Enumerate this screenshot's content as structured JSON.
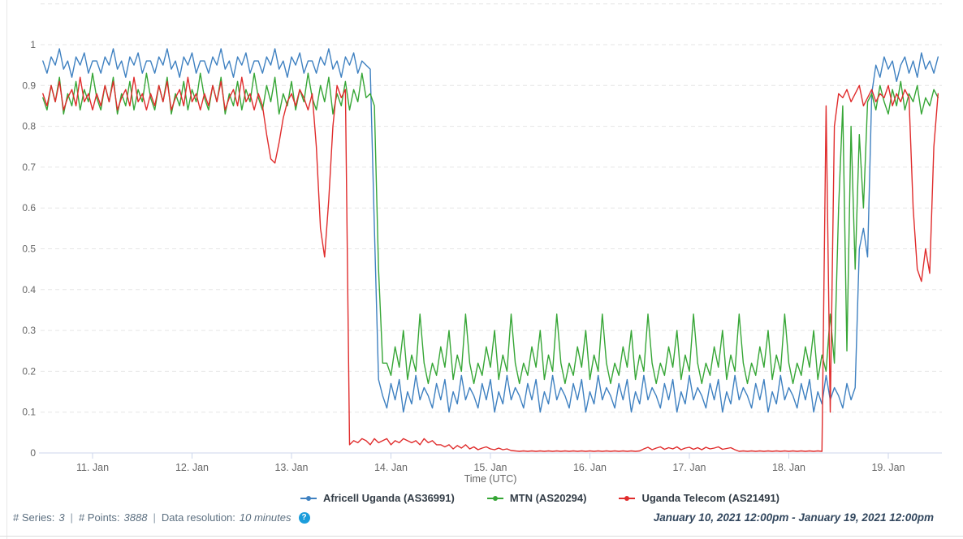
{
  "chart_data": {
    "type": "line",
    "xlabel": "Time (UTC)",
    "x_axis": {
      "start_day": 10.5,
      "end_day": 19.5,
      "tick_days": [
        11,
        12,
        13,
        14,
        15,
        16,
        17,
        18,
        19
      ],
      "tick_labels": [
        "11. Jan",
        "12. Jan",
        "13. Jan",
        "14. Jan",
        "15. Jan",
        "16. Jan",
        "17. Jan",
        "18. Jan",
        "19. Jan"
      ]
    },
    "y_axis": {
      "min": 0,
      "max": 1.1,
      "tick_step": 0.1,
      "labeled_ticks": [
        0,
        0.1,
        0.2,
        0.3,
        0.4,
        0.5,
        0.6,
        0.7,
        0.8,
        0.9,
        1
      ],
      "grid": "dashed"
    },
    "legend_position": "bottom",
    "series": [
      {
        "name": "Africell Uganda (AS36991)",
        "color": "#3f81c1",
        "values": [
          0.96,
          0.93,
          0.97,
          0.95,
          0.99,
          0.94,
          0.96,
          0.92,
          0.97,
          0.95,
          0.98,
          0.93,
          0.96,
          0.96,
          0.93,
          0.97,
          0.95,
          0.99,
          0.94,
          0.96,
          0.92,
          0.97,
          0.95,
          0.98,
          0.93,
          0.96,
          0.96,
          0.93,
          0.97,
          0.95,
          0.99,
          0.94,
          0.96,
          0.92,
          0.97,
          0.95,
          0.98,
          0.93,
          0.96,
          0.96,
          0.93,
          0.97,
          0.95,
          0.99,
          0.94,
          0.96,
          0.92,
          0.97,
          0.95,
          0.98,
          0.93,
          0.96,
          0.96,
          0.93,
          0.97,
          0.95,
          0.99,
          0.94,
          0.96,
          0.92,
          0.97,
          0.95,
          0.98,
          0.93,
          0.96,
          0.96,
          0.93,
          0.97,
          0.95,
          0.99,
          0.94,
          0.96,
          0.92,
          0.97,
          0.95,
          0.98,
          0.93,
          0.96,
          0.95,
          0.94,
          0.55,
          0.18,
          0.14,
          0.11,
          0.17,
          0.13,
          0.18,
          0.1,
          0.15,
          0.12,
          0.19,
          0.13,
          0.16,
          0.14,
          0.11,
          0.17,
          0.13,
          0.18,
          0.1,
          0.15,
          0.12,
          0.19,
          0.13,
          0.16,
          0.14,
          0.11,
          0.17,
          0.13,
          0.18,
          0.1,
          0.15,
          0.12,
          0.19,
          0.13,
          0.16,
          0.14,
          0.11,
          0.17,
          0.13,
          0.18,
          0.1,
          0.15,
          0.12,
          0.19,
          0.13,
          0.16,
          0.14,
          0.11,
          0.17,
          0.13,
          0.18,
          0.1,
          0.15,
          0.12,
          0.19,
          0.13,
          0.16,
          0.14,
          0.11,
          0.17,
          0.13,
          0.18,
          0.1,
          0.15,
          0.12,
          0.19,
          0.13,
          0.16,
          0.14,
          0.11,
          0.17,
          0.13,
          0.18,
          0.1,
          0.15,
          0.12,
          0.19,
          0.13,
          0.16,
          0.14,
          0.11,
          0.17,
          0.13,
          0.18,
          0.1,
          0.15,
          0.12,
          0.19,
          0.13,
          0.16,
          0.14,
          0.11,
          0.17,
          0.13,
          0.18,
          0.1,
          0.15,
          0.12,
          0.19,
          0.13,
          0.16,
          0.14,
          0.11,
          0.17,
          0.13,
          0.18,
          0.1,
          0.15,
          0.12,
          0.19,
          0.13,
          0.16,
          0.14,
          0.11,
          0.17,
          0.13,
          0.16,
          0.5,
          0.55,
          0.48,
          0.88,
          0.95,
          0.92,
          0.97,
          0.94,
          0.96,
          0.91,
          0.95,
          0.97,
          0.93,
          0.96,
          0.92,
          0.98,
          0.94,
          0.96,
          0.93,
          0.97
        ]
      },
      {
        "name": "MTN (AS20294)",
        "color": "#36a636",
        "values": [
          0.87,
          0.84,
          0.9,
          0.86,
          0.92,
          0.83,
          0.88,
          0.85,
          0.91,
          0.84,
          0.89,
          0.86,
          0.93,
          0.87,
          0.84,
          0.9,
          0.86,
          0.92,
          0.83,
          0.88,
          0.85,
          0.91,
          0.84,
          0.89,
          0.86,
          0.93,
          0.87,
          0.84,
          0.9,
          0.86,
          0.92,
          0.83,
          0.88,
          0.85,
          0.91,
          0.84,
          0.89,
          0.86,
          0.93,
          0.87,
          0.84,
          0.9,
          0.86,
          0.92,
          0.83,
          0.88,
          0.85,
          0.91,
          0.84,
          0.89,
          0.86,
          0.93,
          0.87,
          0.84,
          0.9,
          0.86,
          0.92,
          0.83,
          0.88,
          0.85,
          0.91,
          0.84,
          0.89,
          0.86,
          0.93,
          0.87,
          0.84,
          0.9,
          0.86,
          0.92,
          0.83,
          0.88,
          0.85,
          0.91,
          0.84,
          0.89,
          0.86,
          0.93,
          0.87,
          0.88,
          0.85,
          0.45,
          0.22,
          0.22,
          0.19,
          0.26,
          0.21,
          0.3,
          0.18,
          0.24,
          0.2,
          0.34,
          0.22,
          0.17,
          0.22,
          0.19,
          0.26,
          0.21,
          0.3,
          0.18,
          0.24,
          0.2,
          0.34,
          0.22,
          0.17,
          0.22,
          0.19,
          0.26,
          0.21,
          0.3,
          0.18,
          0.24,
          0.2,
          0.34,
          0.22,
          0.17,
          0.22,
          0.19,
          0.26,
          0.21,
          0.3,
          0.18,
          0.24,
          0.2,
          0.34,
          0.22,
          0.17,
          0.22,
          0.19,
          0.26,
          0.21,
          0.3,
          0.18,
          0.24,
          0.2,
          0.34,
          0.22,
          0.17,
          0.22,
          0.19,
          0.26,
          0.21,
          0.3,
          0.18,
          0.24,
          0.2,
          0.34,
          0.22,
          0.17,
          0.22,
          0.19,
          0.26,
          0.21,
          0.3,
          0.18,
          0.24,
          0.2,
          0.34,
          0.22,
          0.17,
          0.22,
          0.19,
          0.26,
          0.21,
          0.3,
          0.18,
          0.24,
          0.2,
          0.34,
          0.22,
          0.17,
          0.22,
          0.19,
          0.26,
          0.21,
          0.3,
          0.18,
          0.24,
          0.2,
          0.34,
          0.22,
          0.17,
          0.22,
          0.19,
          0.26,
          0.21,
          0.3,
          0.18,
          0.24,
          0.2,
          0.34,
          0.22,
          0.6,
          0.85,
          0.25,
          0.8,
          0.45,
          0.78,
          0.6,
          0.86,
          0.88,
          0.84,
          0.9,
          0.86,
          0.83,
          0.89,
          0.85,
          0.91,
          0.84,
          0.88,
          0.86,
          0.9,
          0.83,
          0.87,
          0.85,
          0.89,
          0.87
        ]
      },
      {
        "name": "Uganda Telecom (AS21491)",
        "color": "#e02c2c",
        "values": [
          0.88,
          0.85,
          0.9,
          0.86,
          0.91,
          0.84,
          0.87,
          0.89,
          0.85,
          0.92,
          0.86,
          0.88,
          0.84,
          0.88,
          0.85,
          0.9,
          0.86,
          0.91,
          0.84,
          0.87,
          0.89,
          0.85,
          0.92,
          0.86,
          0.88,
          0.84,
          0.88,
          0.85,
          0.9,
          0.86,
          0.91,
          0.84,
          0.87,
          0.89,
          0.85,
          0.92,
          0.86,
          0.88,
          0.84,
          0.88,
          0.85,
          0.9,
          0.86,
          0.91,
          0.84,
          0.87,
          0.89,
          0.85,
          0.92,
          0.86,
          0.88,
          0.84,
          0.88,
          0.85,
          0.78,
          0.72,
          0.71,
          0.76,
          0.82,
          0.86,
          0.88,
          0.85,
          0.89,
          0.87,
          0.84,
          0.88,
          0.75,
          0.55,
          0.48,
          0.62,
          0.8,
          0.9,
          0.87,
          0.89,
          0.02,
          0.03,
          0.025,
          0.035,
          0.03,
          0.02,
          0.035,
          0.025,
          0.03,
          0.035,
          0.02,
          0.03,
          0.025,
          0.035,
          0.03,
          0.025,
          0.03,
          0.02,
          0.035,
          0.025,
          0.03,
          0.02,
          0.02,
          0.015,
          0.02,
          0.01,
          0.018,
          0.012,
          0.02,
          0.01,
          0.015,
          0.008,
          0.012,
          0.015,
          0.01,
          0.008,
          0.012,
          0.008,
          0.01,
          0.006,
          0.005,
          0.004,
          0.005,
          0.004,
          0.005,
          0.004,
          0.005,
          0.004,
          0.005,
          0.004,
          0.005,
          0.004,
          0.005,
          0.004,
          0.005,
          0.004,
          0.005,
          0.004,
          0.005,
          0.004,
          0.005,
          0.004,
          0.005,
          0.004,
          0.005,
          0.004,
          0.005,
          0.004,
          0.005,
          0.004,
          0.005,
          0.01,
          0.014,
          0.008,
          0.012,
          0.015,
          0.009,
          0.013,
          0.01,
          0.015,
          0.008,
          0.012,
          0.014,
          0.009,
          0.013,
          0.008,
          0.014,
          0.01,
          0.012,
          0.015,
          0.009,
          0.011,
          0.013,
          0.008,
          0.004,
          0.005,
          0.004,
          0.005,
          0.004,
          0.005,
          0.004,
          0.005,
          0.004,
          0.005,
          0.004,
          0.005,
          0.004,
          0.005,
          0.004,
          0.005,
          0.004,
          0.005,
          0.004,
          0.005,
          0.004,
          0.85,
          0.1,
          0.8,
          0.88,
          0.87,
          0.89,
          0.86,
          0.88,
          0.9,
          0.85,
          0.87,
          0.89,
          0.86,
          0.88,
          0.87,
          0.9,
          0.85,
          0.88,
          0.86,
          0.89,
          0.87,
          0.6,
          0.45,
          0.42,
          0.5,
          0.44,
          0.75,
          0.88
        ]
      }
    ]
  },
  "footer": {
    "series_label": "# Series:",
    "series_value": "3",
    "points_label": "# Points:",
    "points_value": "3888",
    "resolution_label": "Data resolution:",
    "resolution_value": "10 minutes",
    "separator": "|",
    "help_icon": "?",
    "date_range": "January 10, 2021 12:00pm - January 19, 2021 12:00pm"
  }
}
